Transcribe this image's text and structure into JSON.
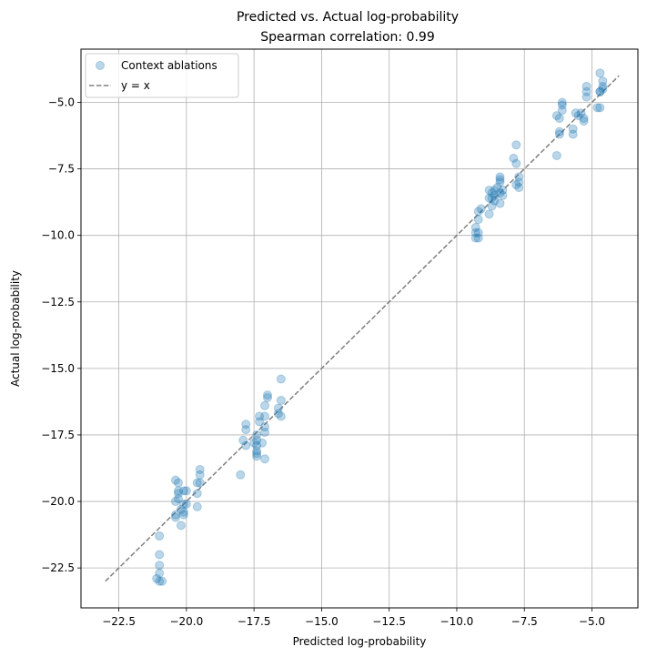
{
  "chart_data": {
    "type": "scatter",
    "title": "Predicted vs. Actual log-probability",
    "subtitle": "Spearman correlation: 0.99",
    "xlabel": "Predicted log-probability",
    "ylabel": "Actual log-probability",
    "xlim": [
      -23.9,
      -3.3
    ],
    "ylim": [
      -24.0,
      -3.0
    ],
    "x_ticks": [
      -22.5,
      -20.0,
      -17.5,
      -15.0,
      -12.5,
      -10.0,
      -7.5,
      -5.0
    ],
    "x_tick_labels": [
      "−22.5",
      "−20.0",
      "−17.5",
      "−15.0",
      "−12.5",
      "−10.0",
      "−7.5",
      "−5.0"
    ],
    "y_ticks": [
      -22.5,
      -20.0,
      -17.5,
      -15.0,
      -12.5,
      -10.0,
      -7.5,
      -5.0
    ],
    "y_tick_labels": [
      "−22.5",
      "−20.0",
      "−17.5",
      "−15.0",
      "−12.5",
      "−10.0",
      "−7.5",
      "−5.0"
    ],
    "grid": true,
    "legend_position": "top-left",
    "colors": {
      "points": "#1f77b4",
      "reference_line": "#808080",
      "grid": "#b0b0b0"
    },
    "series": [
      {
        "name": "Context ablations",
        "style": "scatter",
        "points": [
          [
            -21.0,
            -21.3
          ],
          [
            -21.0,
            -22.0
          ],
          [
            -21.0,
            -22.4
          ],
          [
            -21.0,
            -22.7
          ],
          [
            -21.1,
            -22.9
          ],
          [
            -20.9,
            -23.0
          ],
          [
            -21.0,
            -23.0
          ],
          [
            -20.4,
            -19.2
          ],
          [
            -20.3,
            -19.3
          ],
          [
            -20.3,
            -19.6
          ],
          [
            -20.3,
            -19.7
          ],
          [
            -20.4,
            -20.0
          ],
          [
            -20.3,
            -19.9
          ],
          [
            -20.2,
            -20.3
          ],
          [
            -20.4,
            -20.5
          ],
          [
            -20.4,
            -20.6
          ],
          [
            -20.1,
            -19.6
          ],
          [
            -20.0,
            -19.6
          ],
          [
            -20.1,
            -20.1
          ],
          [
            -20.0,
            -20.1
          ],
          [
            -20.1,
            -20.4
          ],
          [
            -20.1,
            -20.5
          ],
          [
            -20.2,
            -20.9
          ],
          [
            -19.5,
            -18.8
          ],
          [
            -19.5,
            -19.0
          ],
          [
            -19.6,
            -19.3
          ],
          [
            -19.5,
            -19.3
          ],
          [
            -19.6,
            -19.7
          ],
          [
            -19.6,
            -20.2
          ],
          [
            -18.0,
            -19.0
          ],
          [
            -17.8,
            -17.1
          ],
          [
            -17.8,
            -17.3
          ],
          [
            -17.9,
            -17.7
          ],
          [
            -17.8,
            -17.9
          ],
          [
            -17.4,
            -17.5
          ],
          [
            -17.4,
            -17.7
          ],
          [
            -17.5,
            -17.8
          ],
          [
            -17.4,
            -17.9
          ],
          [
            -17.4,
            -18.1
          ],
          [
            -17.4,
            -18.2
          ],
          [
            -17.4,
            -18.3
          ],
          [
            -17.3,
            -16.8
          ],
          [
            -17.3,
            -17.0
          ],
          [
            -17.1,
            -16.4
          ],
          [
            -17.0,
            -16.1
          ],
          [
            -17.0,
            -16.0
          ],
          [
            -17.1,
            -16.8
          ],
          [
            -17.1,
            -17.2
          ],
          [
            -17.1,
            -17.4
          ],
          [
            -17.2,
            -17.8
          ],
          [
            -17.1,
            -18.4
          ],
          [
            -16.5,
            -15.4
          ],
          [
            -16.5,
            -16.2
          ],
          [
            -16.6,
            -16.5
          ],
          [
            -16.6,
            -16.7
          ],
          [
            -16.5,
            -16.8
          ],
          [
            -9.3,
            -9.7
          ],
          [
            -9.2,
            -9.4
          ],
          [
            -9.2,
            -9.1
          ],
          [
            -9.1,
            -9.0
          ],
          [
            -9.3,
            -9.9
          ],
          [
            -9.2,
            -9.9
          ],
          [
            -9.3,
            -10.1
          ],
          [
            -9.2,
            -10.1
          ],
          [
            -8.8,
            -8.3
          ],
          [
            -8.7,
            -8.4
          ],
          [
            -8.6,
            -8.5
          ],
          [
            -8.8,
            -8.6
          ],
          [
            -8.6,
            -8.3
          ],
          [
            -8.7,
            -8.6
          ],
          [
            -8.5,
            -8.2
          ],
          [
            -8.4,
            -8.0
          ],
          [
            -8.4,
            -7.8
          ],
          [
            -8.4,
            -7.9
          ],
          [
            -8.3,
            -8.3
          ],
          [
            -8.3,
            -8.5
          ],
          [
            -8.4,
            -8.8
          ],
          [
            -8.6,
            -8.7
          ],
          [
            -8.7,
            -8.9
          ],
          [
            -8.8,
            -9.2
          ],
          [
            -8.4,
            -8.4
          ],
          [
            -7.8,
            -6.6
          ],
          [
            -7.9,
            -7.1
          ],
          [
            -7.8,
            -7.3
          ],
          [
            -7.7,
            -7.8
          ],
          [
            -7.7,
            -8.0
          ],
          [
            -7.8,
            -8.1
          ],
          [
            -7.7,
            -8.2
          ],
          [
            -6.3,
            -7.0
          ],
          [
            -6.3,
            -5.5
          ],
          [
            -6.2,
            -5.6
          ],
          [
            -6.2,
            -6.1
          ],
          [
            -6.2,
            -6.2
          ],
          [
            -6.1,
            -5.0
          ],
          [
            -6.1,
            -5.1
          ],
          [
            -6.1,
            -5.3
          ],
          [
            -5.7,
            -6.0
          ],
          [
            -5.7,
            -6.2
          ],
          [
            -5.6,
            -5.4
          ],
          [
            -5.5,
            -5.5
          ],
          [
            -5.4,
            -5.4
          ],
          [
            -5.3,
            -5.6
          ],
          [
            -5.3,
            -5.7
          ],
          [
            -5.2,
            -4.4
          ],
          [
            -5.2,
            -4.6
          ],
          [
            -5.2,
            -4.8
          ],
          [
            -4.8,
            -5.2
          ],
          [
            -4.7,
            -5.2
          ],
          [
            -4.7,
            -4.6
          ],
          [
            -4.6,
            -4.5
          ],
          [
            -4.6,
            -4.4
          ],
          [
            -4.6,
            -4.2
          ],
          [
            -4.7,
            -3.9
          ],
          [
            -4.7,
            -4.6
          ]
        ]
      },
      {
        "name": "y = x",
        "style": "dashed-line",
        "points": [
          [
            -23.0,
            -23.0
          ],
          [
            -4.0,
            -4.0
          ]
        ]
      }
    ]
  }
}
